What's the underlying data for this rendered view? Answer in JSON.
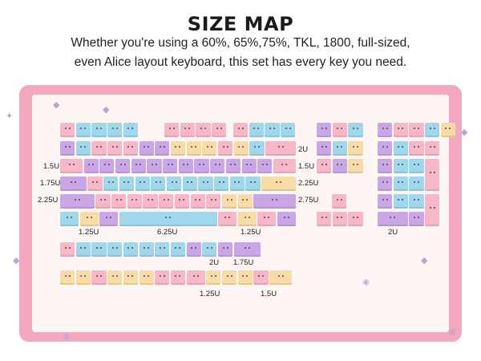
{
  "header": {
    "title": "SIZE MAP",
    "line1": "Whether you're using a 60%, 65%,75%, TKL, 1800, full-sized,",
    "line2": "even Alice layout keyboard, this set has every key you need."
  },
  "size_labels": {
    "2u_top": "2U",
    "1_5u_left": "1.5U",
    "1_5u_right": "1.5U",
    "1_75u_left": "1.75U",
    "2_25u_right": "2.25U",
    "2_25u_left": "2.25U",
    "2_75u_right": "2.75U",
    "bottom_1_25u_left": "1.25U",
    "bottom_6_25u": "6.25U",
    "bottom_1_25u_right": "1.25U",
    "numpad_2u": "2U",
    "extra_2u": "2U",
    "extra_1_75u": "1.75U",
    "row3_1_25u": "1.25U",
    "row3_1_5u": "1.5U"
  },
  "colors": {
    "pink": "#f6b7c9",
    "blue": "#9fd8ea",
    "purple": "#c9a6e6",
    "yellow": "#f8dca7",
    "mat": "#f2a9bf",
    "mat_inner": "#fdf6f5"
  },
  "icons": [
    "cat-keycap-icon",
    "candy-icon",
    "sparkle-icon"
  ]
}
